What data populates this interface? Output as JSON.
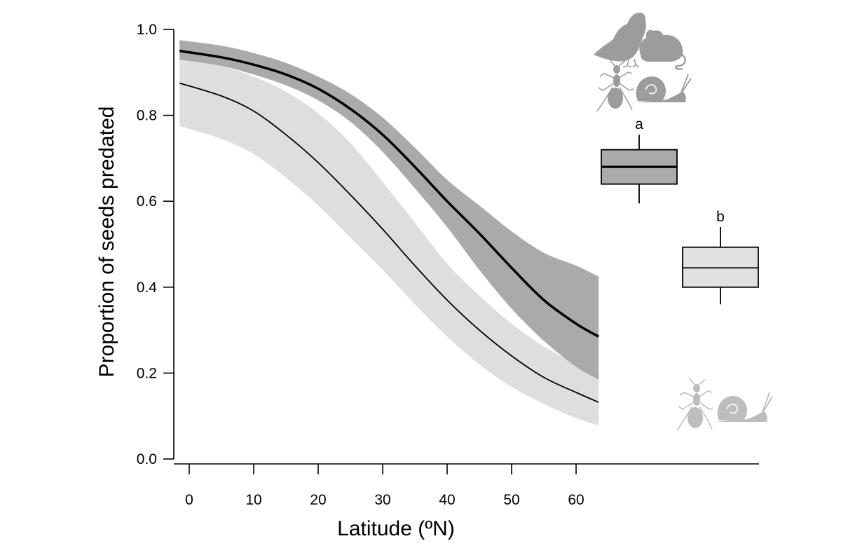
{
  "chart_data": {
    "type": "line",
    "title": "",
    "xlabel": "Latitude (ºN)",
    "ylabel": "Proportion of seeds predated",
    "xlim": [
      -1.5,
      63.5
    ],
    "ylim": [
      0.0,
      1.0
    ],
    "xticks": [
      "0",
      "10",
      "20",
      "30",
      "40",
      "50",
      "60"
    ],
    "yticks": [
      "0.0",
      "0.2",
      "0.4",
      "0.6",
      "0.8",
      "1.0"
    ],
    "grid": false,
    "legend": "none",
    "series": [
      {
        "line_color": "#000000",
        "band_color": "#a3a3a3",
        "line_width": 3.5,
        "x": [
          -1.5,
          5,
          10,
          15,
          20,
          25,
          30,
          35,
          40,
          45,
          50,
          55,
          60,
          63.5
        ],
        "y": [
          0.95,
          0.935,
          0.918,
          0.895,
          0.862,
          0.815,
          0.755,
          0.68,
          0.6,
          0.525,
          0.445,
          0.37,
          0.315,
          0.285
        ],
        "lower": [
          0.93,
          0.915,
          0.895,
          0.87,
          0.835,
          0.785,
          0.715,
          0.63,
          0.54,
          0.44,
          0.35,
          0.275,
          0.215,
          0.185
        ],
        "upper": [
          0.975,
          0.962,
          0.945,
          0.922,
          0.89,
          0.85,
          0.795,
          0.725,
          0.65,
          0.59,
          0.53,
          0.48,
          0.45,
          0.425
        ]
      },
      {
        "line_color": "#000000",
        "band_color": "#dedede",
        "line_width": 1.8,
        "x": [
          -1.5,
          5,
          10,
          15,
          20,
          25,
          30,
          35,
          40,
          45,
          50,
          55,
          60,
          63.5
        ],
        "y": [
          0.875,
          0.845,
          0.81,
          0.755,
          0.69,
          0.615,
          0.535,
          0.45,
          0.37,
          0.3,
          0.24,
          0.19,
          0.155,
          0.132
        ],
        "lower": [
          0.775,
          0.745,
          0.71,
          0.655,
          0.59,
          0.515,
          0.44,
          0.36,
          0.285,
          0.22,
          0.168,
          0.128,
          0.095,
          0.078
        ],
        "upper": [
          0.935,
          0.915,
          0.89,
          0.855,
          0.805,
          0.735,
          0.645,
          0.55,
          0.455,
          0.38,
          0.315,
          0.262,
          0.222,
          0.2
        ]
      }
    ],
    "boxplots": [
      {
        "label": "a",
        "fill": "#ababab",
        "min": 0.595,
        "q1": 0.64,
        "median": 0.68,
        "q3": 0.72,
        "max": 0.755
      },
      {
        "label": "b",
        "fill": "#e1e1e1",
        "min": 0.36,
        "q1": 0.4,
        "median": 0.445,
        "q3": 0.493,
        "max": 0.54
      }
    ],
    "icons": {
      "color_all": "#9c9c9c",
      "color_small": "#bdbdbd",
      "top_group": [
        "pigeon-icon",
        "mouse-icon",
        "ant-icon",
        "snail-icon"
      ],
      "bottom_group": [
        "ant-icon",
        "snail-icon"
      ]
    }
  }
}
